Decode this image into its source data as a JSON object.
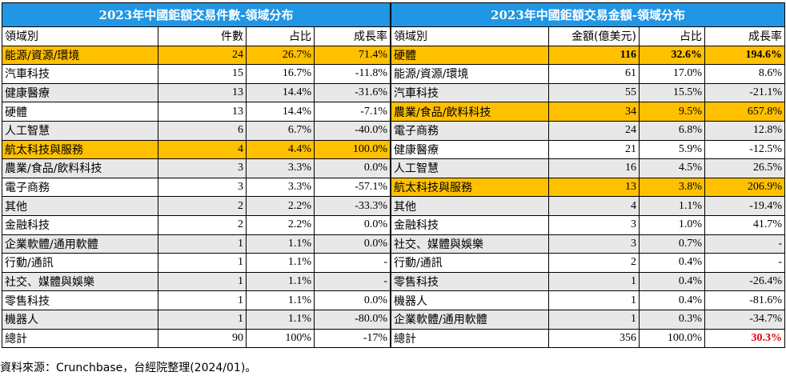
{
  "left_table": {
    "title": "2023年中國鉅額交易件數-領域分布",
    "headers": [
      "領域別",
      "件數",
      "占比",
      "成長率"
    ],
    "rows": [
      {
        "field": "能源/資源/環境",
        "count": "24",
        "share": "26.7%",
        "growth": "71.4%",
        "highlight": true
      },
      {
        "field": "汽車科技",
        "count": "15",
        "share": "16.7%",
        "growth": "-11.8%"
      },
      {
        "field": "健康醫療",
        "count": "13",
        "share": "14.4%",
        "growth": "-31.6%"
      },
      {
        "field": "硬體",
        "count": "13",
        "share": "14.4%",
        "growth": "-7.1%"
      },
      {
        "field": "人工智慧",
        "count": "6",
        "share": "6.7%",
        "growth": "-40.0%"
      },
      {
        "field": "航太科技與服務",
        "count": "4",
        "share": "4.4%",
        "growth": "100.0%",
        "highlight": true
      },
      {
        "field": "農業/食品/飲料科技",
        "count": "3",
        "share": "3.3%",
        "growth": "0.0%"
      },
      {
        "field": "電子商務",
        "count": "3",
        "share": "3.3%",
        "growth": "-57.1%"
      },
      {
        "field": "其他",
        "count": "2",
        "share": "2.2%",
        "growth": "-33.3%"
      },
      {
        "field": "金融科技",
        "count": "2",
        "share": "2.2%",
        "growth": "0.0%"
      },
      {
        "field": "企業軟體/通用軟體",
        "count": "1",
        "share": "1.1%",
        "growth": "0.0%"
      },
      {
        "field": "行動/通訊",
        "count": "1",
        "share": "1.1%",
        "growth": "-"
      },
      {
        "field": "社交、媒體與娛樂",
        "count": "1",
        "share": "1.1%",
        "growth": "-"
      },
      {
        "field": "零售科技",
        "count": "1",
        "share": "1.1%",
        "growth": "0.0%"
      },
      {
        "field": "機器人",
        "count": "1",
        "share": "1.1%",
        "growth": "-80.0%"
      }
    ],
    "total": {
      "field": "總計",
      "count": "90",
      "share": "100%",
      "growth": "-17%"
    }
  },
  "right_table": {
    "title": "2023年中國鉅額交易金額-領域分布",
    "headers": [
      "領域別",
      "金額(億美元)",
      "占比",
      "成長率"
    ],
    "rows": [
      {
        "field": "硬體",
        "amount": "116",
        "share": "32.6%",
        "growth": "194.6%",
        "highlight": true,
        "bold": true
      },
      {
        "field": "能源/資源/環境",
        "amount": "61",
        "share": "17.0%",
        "growth": "8.6%"
      },
      {
        "field": "汽車科技",
        "amount": "55",
        "share": "15.5%",
        "growth": "-21.1%"
      },
      {
        "field": "農業/食品/飲料科技",
        "amount": "34",
        "share": "9.5%",
        "growth": "657.8%",
        "highlight": true
      },
      {
        "field": "電子商務",
        "amount": "24",
        "share": "6.8%",
        "growth": "12.8%"
      },
      {
        "field": "健康醫療",
        "amount": "21",
        "share": "5.9%",
        "growth": "-12.5%"
      },
      {
        "field": "人工智慧",
        "amount": "16",
        "share": "4.5%",
        "growth": "26.5%"
      },
      {
        "field": "航太科技與服務",
        "amount": "13",
        "share": "3.8%",
        "growth": "206.9%",
        "highlight": true
      },
      {
        "field": "其他",
        "amount": "4",
        "share": "1.1%",
        "growth": "-19.4%"
      },
      {
        "field": "金融科技",
        "amount": "3",
        "share": "1.0%",
        "growth": "41.7%"
      },
      {
        "field": "社交、媒體與娛樂",
        "amount": "3",
        "share": "0.7%",
        "growth": "-"
      },
      {
        "field": "行動/通訊",
        "amount": "2",
        "share": "0.4%",
        "growth": "-"
      },
      {
        "field": "零售科技",
        "amount": "1",
        "share": "0.4%",
        "growth": "-26.4%"
      },
      {
        "field": "機器人",
        "amount": "1",
        "share": "0.4%",
        "growth": "-81.6%"
      },
      {
        "field": "企業軟體/通用軟體",
        "amount": "1",
        "share": "0.3%",
        "growth": "-34.7%"
      }
    ],
    "total": {
      "field": "總計",
      "amount": "356",
      "share": "100.0%",
      "growth": "30.3%"
    }
  },
  "source_note": "資料來源：Crunchbase，台經院整理(2024/01)。",
  "colors": {
    "title_bg": "#2196e4",
    "highlight": "#ffc000",
    "stripe": "#e8e8e8",
    "total_growth": "#e0000f"
  }
}
